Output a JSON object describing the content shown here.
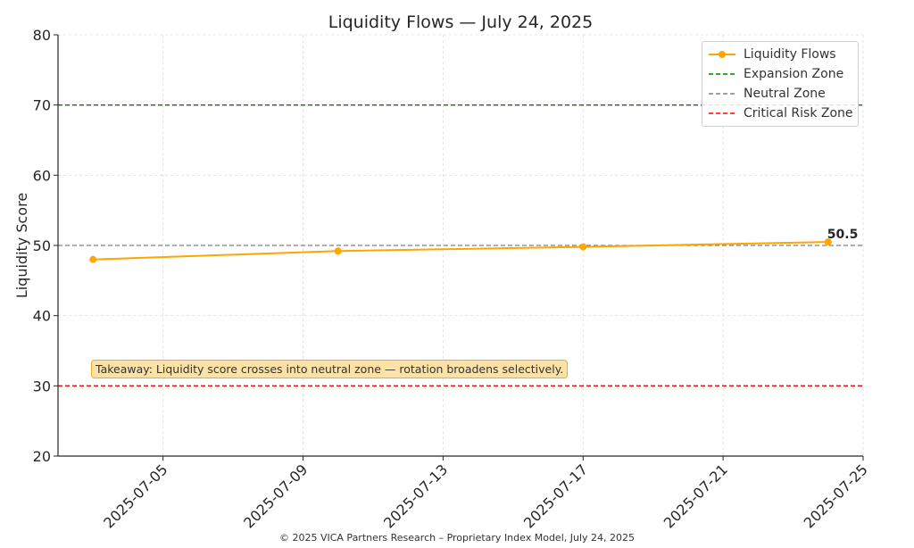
{
  "chart_data": {
    "type": "line",
    "title": "Liquidity Flows — July 24, 2025",
    "xlabel": "",
    "ylabel": "Liquidity Score",
    "ylim": [
      20,
      80
    ],
    "xlim": [
      "2025-07-02",
      "2025-07-25"
    ],
    "yticks": [
      "20",
      "30",
      "40",
      "50",
      "60",
      "70",
      "80"
    ],
    "xticks": [
      "2025-07-05",
      "2025-07-09",
      "2025-07-13",
      "2025-07-17",
      "2025-07-21",
      "2025-07-25"
    ],
    "grid": true,
    "legend_position": "top-right",
    "series": [
      {
        "name": "Liquidity Flows",
        "color": "#ffa500",
        "x": [
          "2025-07-03",
          "2025-07-10",
          "2025-07-17",
          "2025-07-24"
        ],
        "y": [
          48.0,
          49.2,
          49.8,
          50.5
        ]
      }
    ],
    "reference_lines": [
      {
        "name": "Expansion Zone",
        "y": 70,
        "color": "#008000",
        "style": "dashed"
      },
      {
        "name": "Neutral Zone",
        "y": 50,
        "color": "#808080",
        "style": "dashed"
      },
      {
        "name": "Critical Risk Zone",
        "y": 30,
        "color": "#ff0000",
        "style": "dashed"
      }
    ],
    "point_label": "50.5",
    "annotation": "Takeaway: Liquidity score crosses into neutral zone — rotation broadens selectively."
  },
  "footer": "© 2025 VICA Partners Research – Proprietary Index Model, July 24, 2025"
}
